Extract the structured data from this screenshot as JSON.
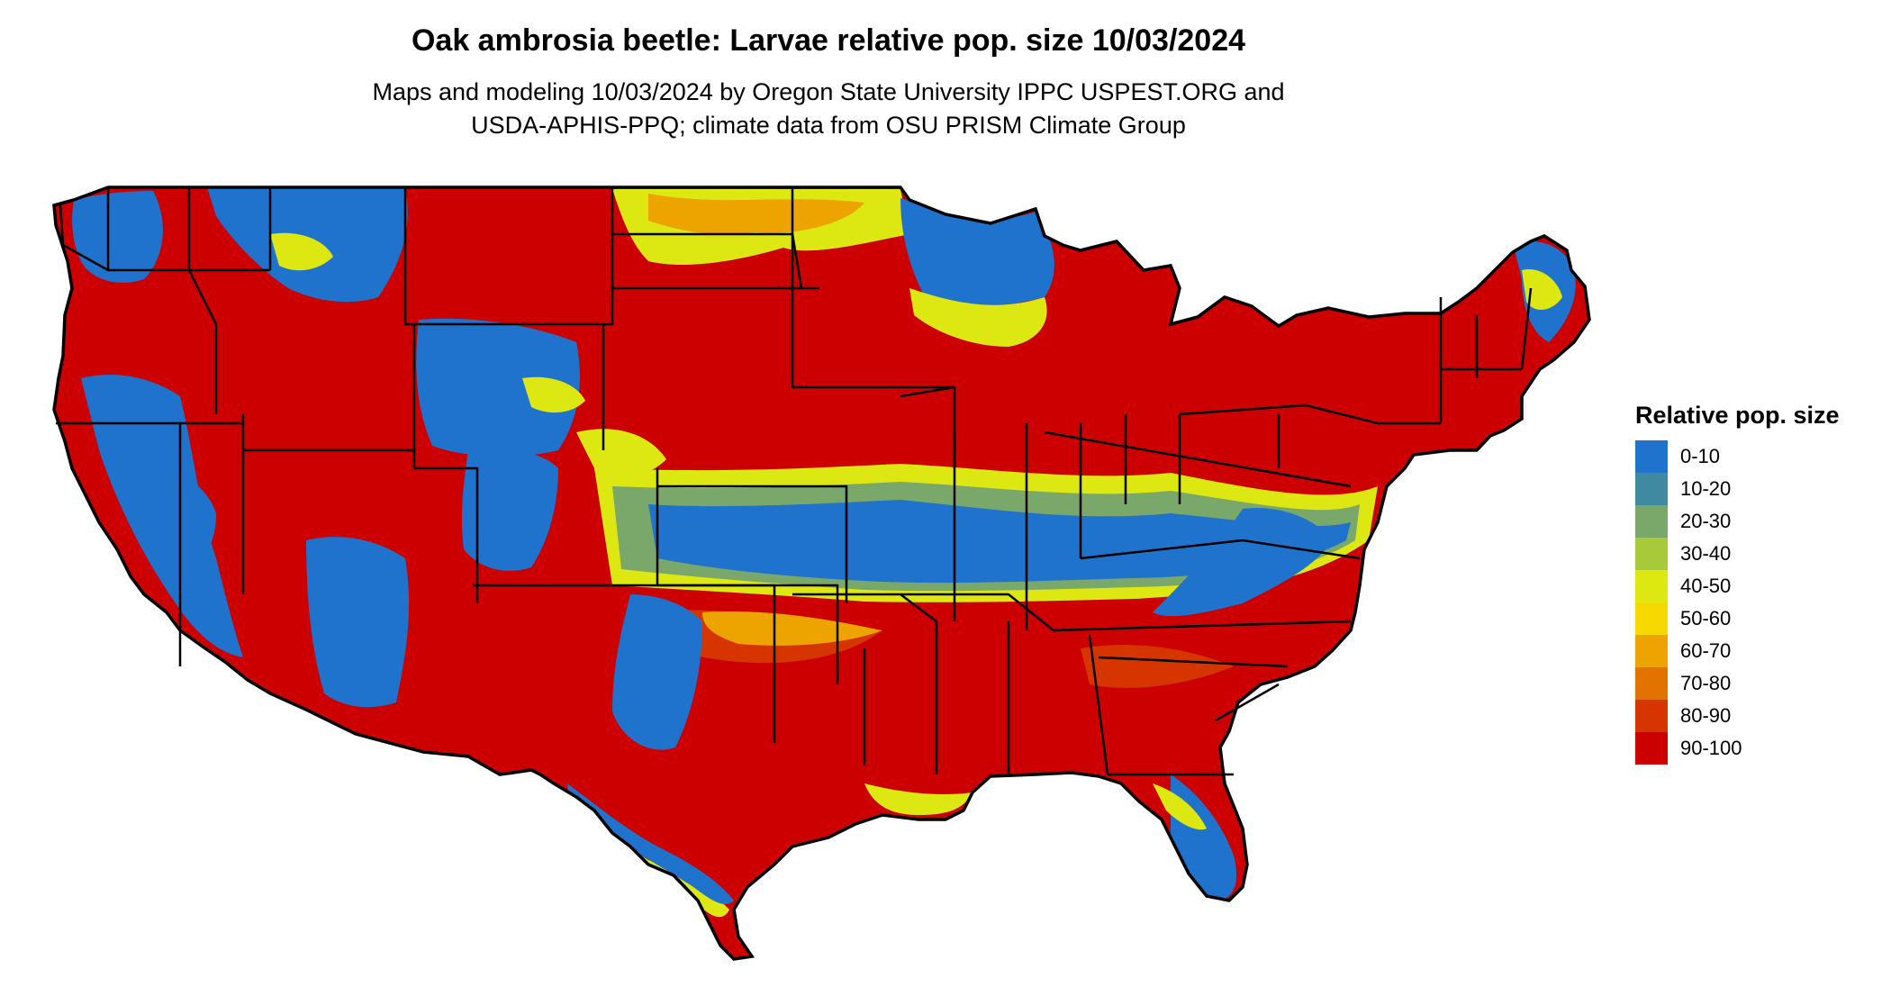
{
  "title": "Oak ambrosia beetle: Larvae relative pop. size 10/03/2024",
  "subtitle": [
    "Maps and modeling 10/03/2024 by Oregon State University IPPC USPEST.ORG and",
    "USDA-APHIS-PPQ; climate data from OSU PRISM Climate Group"
  ],
  "legend": {
    "title": "Relative pop. size",
    "items": [
      {
        "label": "0-10",
        "color": "#1f73cc"
      },
      {
        "label": "10-20",
        "color": "#3f8aa1"
      },
      {
        "label": "20-30",
        "color": "#7aa86b"
      },
      {
        "label": "30-40",
        "color": "#a8c93a"
      },
      {
        "label": "40-50",
        "color": "#dde812"
      },
      {
        "label": "50-60",
        "color": "#f7d800"
      },
      {
        "label": "60-70",
        "color": "#eda300"
      },
      {
        "label": "70-80",
        "color": "#e27300"
      },
      {
        "label": "80-90",
        "color": "#d63500"
      },
      {
        "label": "90-100",
        "color": "#cc0000"
      }
    ]
  },
  "colors": {
    "state_border": "#000000",
    "background": "#ffffff"
  }
}
